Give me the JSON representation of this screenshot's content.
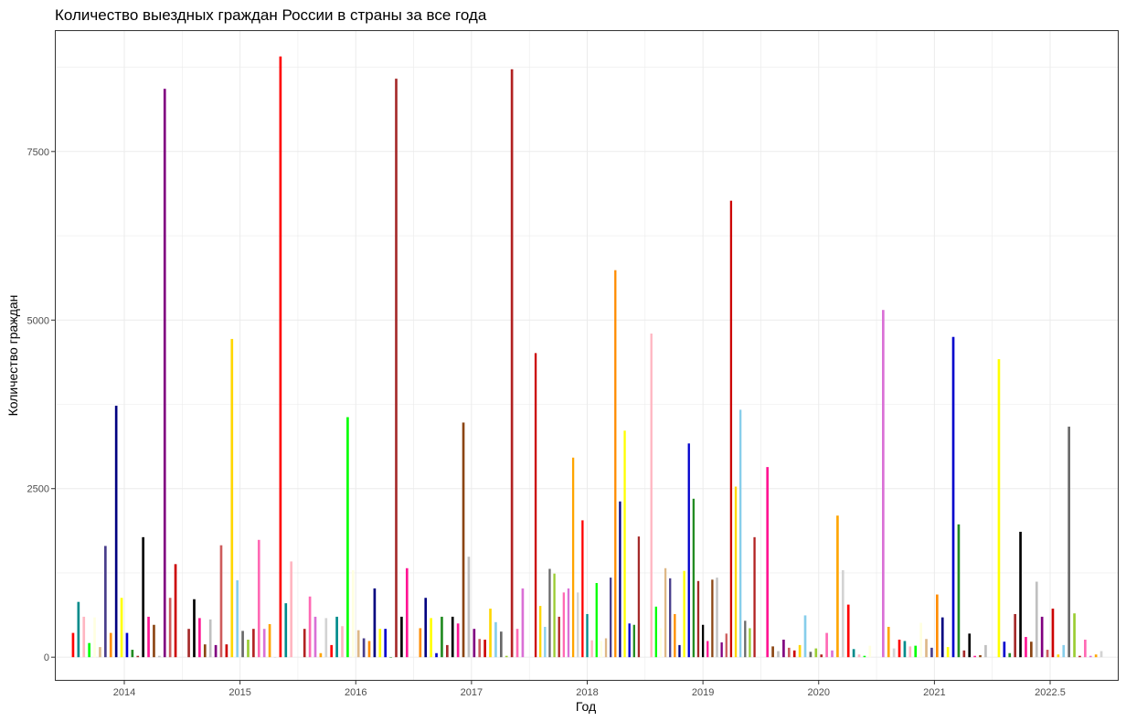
{
  "chart_data": {
    "type": "bar",
    "title": "Количество выездных граждан России в страны за все года",
    "xlabel": "Год",
    "ylabel": "Количество граждан",
    "x_tick_labels": [
      "2014",
      "2015",
      "2016",
      "2017",
      "2018",
      "2019",
      "2020",
      "2021",
      "2022.5"
    ],
    "y_ticks": [
      0,
      2500,
      5000,
      7500
    ],
    "ylim": [
      -350,
      9300
    ],
    "grid": true,
    "legend": "none",
    "palette": [
      "#FF0000",
      "#0000CD",
      "#FFD700",
      "#008B8B",
      "#228B22",
      "#87CEEB",
      "#FFB6C1",
      "#A52A2A",
      "#696969",
      "#00FF00",
      "#000000",
      "#9ACD32",
      "#FFFFE0",
      "#FF1493",
      "#B22222",
      "#DEB887",
      "#8B4513",
      "#FF69B4",
      "#483D8B",
      "#C0C0C0",
      "#DA70D6",
      "#FF8C00",
      "#800080",
      "#FFA500",
      "#000080",
      "#CD5C5C",
      "#D3D3D3",
      "#FFFF00",
      "#CC0000"
    ],
    "groups": [
      {
        "label": "2014",
        "values": [
          360,
          820,
          600,
          210,
          590,
          150,
          1650,
          360,
          3730,
          880,
          360,
          110,
          20,
          1780,
          600,
          480,
          20,
          8430,
          880,
          1380
        ]
      },
      {
        "label": "2015",
        "values": [
          420,
          860,
          580,
          190,
          560,
          180,
          1660,
          190,
          4720,
          1140,
          390,
          260,
          420,
          1740,
          420,
          490,
          0,
          8910,
          800,
          1420
        ]
      },
      {
        "label": "2016",
        "values": [
          420,
          900,
          600,
          60,
          580,
          180,
          600,
          460,
          3560,
          1290,
          400,
          280,
          240,
          1020,
          420,
          420,
          0,
          8580,
          600,
          1320
        ]
      },
      {
        "label": "2017",
        "values": [
          430,
          880,
          580,
          60,
          600,
          180,
          600,
          500,
          3480,
          1490,
          420,
          270,
          260,
          720,
          520,
          380,
          20,
          8720,
          420,
          1020
        ]
      },
      {
        "label": "2018",
        "values": [
          4510,
          760,
          450,
          1310,
          1240,
          600,
          960,
          1020,
          2960,
          960,
          2030,
          640,
          250,
          1100,
          240,
          280,
          1180,
          5740,
          2310,
          3360,
          500,
          480,
          1790
        ]
      },
      {
        "label": "2019",
        "values": [
          4800,
          750,
          430,
          1320,
          1170,
          640,
          180,
          1280,
          3170,
          2350,
          1130,
          480,
          240,
          1150,
          1180,
          220,
          350,
          6770,
          2530,
          3670,
          540,
          430,
          1780
        ]
      },
      {
        "label": "2020",
        "values": [
          2820,
          160,
          90,
          260,
          140,
          100,
          180,
          620,
          80,
          130,
          40,
          360,
          100,
          2100,
          1290,
          780,
          120,
          40,
          20,
          170
        ]
      },
      {
        "label": "2021",
        "values": [
          5150,
          450,
          130,
          260,
          240,
          160,
          170,
          510,
          270,
          140,
          930,
          590,
          150,
          4750,
          1970,
          100,
          350,
          20,
          30,
          180
        ]
      },
      {
        "label": "2022.5",
        "values": [
          4420,
          230,
          60,
          640,
          1860,
          300,
          230,
          1120,
          600,
          110,
          720,
          40,
          180,
          3420,
          650,
          20,
          260,
          20,
          40,
          90
        ]
      }
    ]
  }
}
